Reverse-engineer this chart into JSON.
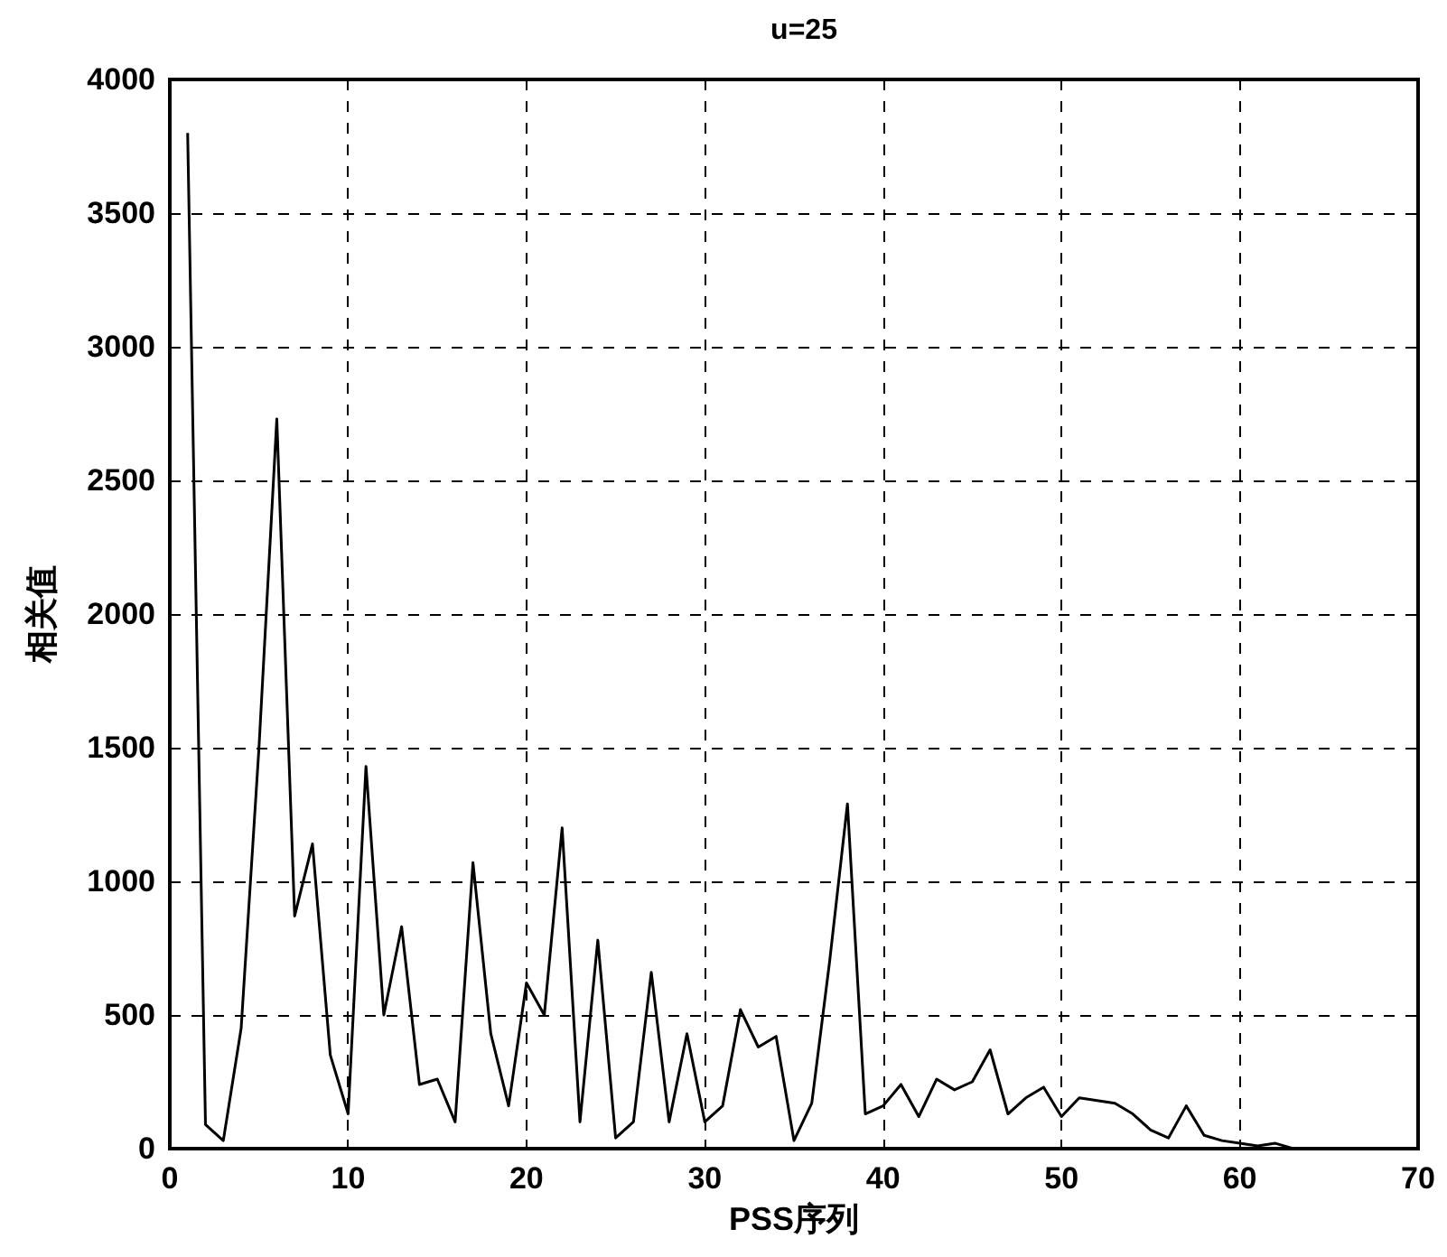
{
  "chart_data": {
    "type": "line",
    "title": "u=25",
    "xlabel": "PSS序列",
    "ylabel": "相关值",
    "x": [
      1,
      2,
      3,
      4,
      5,
      6,
      7,
      8,
      9,
      10,
      11,
      12,
      13,
      14,
      15,
      16,
      17,
      18,
      19,
      20,
      21,
      22,
      23,
      24,
      25,
      26,
      27,
      28,
      29,
      30,
      31,
      32,
      33,
      34,
      35,
      36,
      37,
      38,
      39,
      40,
      41,
      42,
      43,
      44,
      45,
      46,
      47,
      48,
      49,
      50,
      51,
      52,
      53,
      54,
      55,
      56,
      57,
      58,
      59,
      60,
      61,
      62,
      63,
      64
    ],
    "series": [
      {
        "color": "#000000",
        "values": [
          3800,
          90,
          30,
          450,
          1500,
          2730,
          870,
          1140,
          350,
          130,
          1430,
          500,
          830,
          240,
          260,
          100,
          1070,
          430,
          160,
          620,
          500,
          1200,
          100,
          780,
          40,
          100,
          660,
          100,
          430,
          100,
          160,
          520,
          380,
          420,
          30,
          170,
          700,
          1290,
          130,
          160,
          240,
          120,
          260,
          220,
          250,
          370,
          130,
          190,
          230,
          120,
          190,
          180,
          170,
          130,
          70,
          40,
          160,
          50,
          30,
          20,
          10,
          20,
          0,
          0
        ]
      }
    ],
    "xlim": [
      0,
      70
    ],
    "xticks": [
      0,
      10,
      20,
      30,
      40,
      50,
      60,
      70
    ],
    "ylim": [
      0,
      4000
    ],
    "yticks": [
      0,
      500,
      1000,
      1500,
      2000,
      2500,
      3000,
      3500,
      4000
    ],
    "grid": true,
    "marker": "none",
    "line_style": "solid"
  }
}
